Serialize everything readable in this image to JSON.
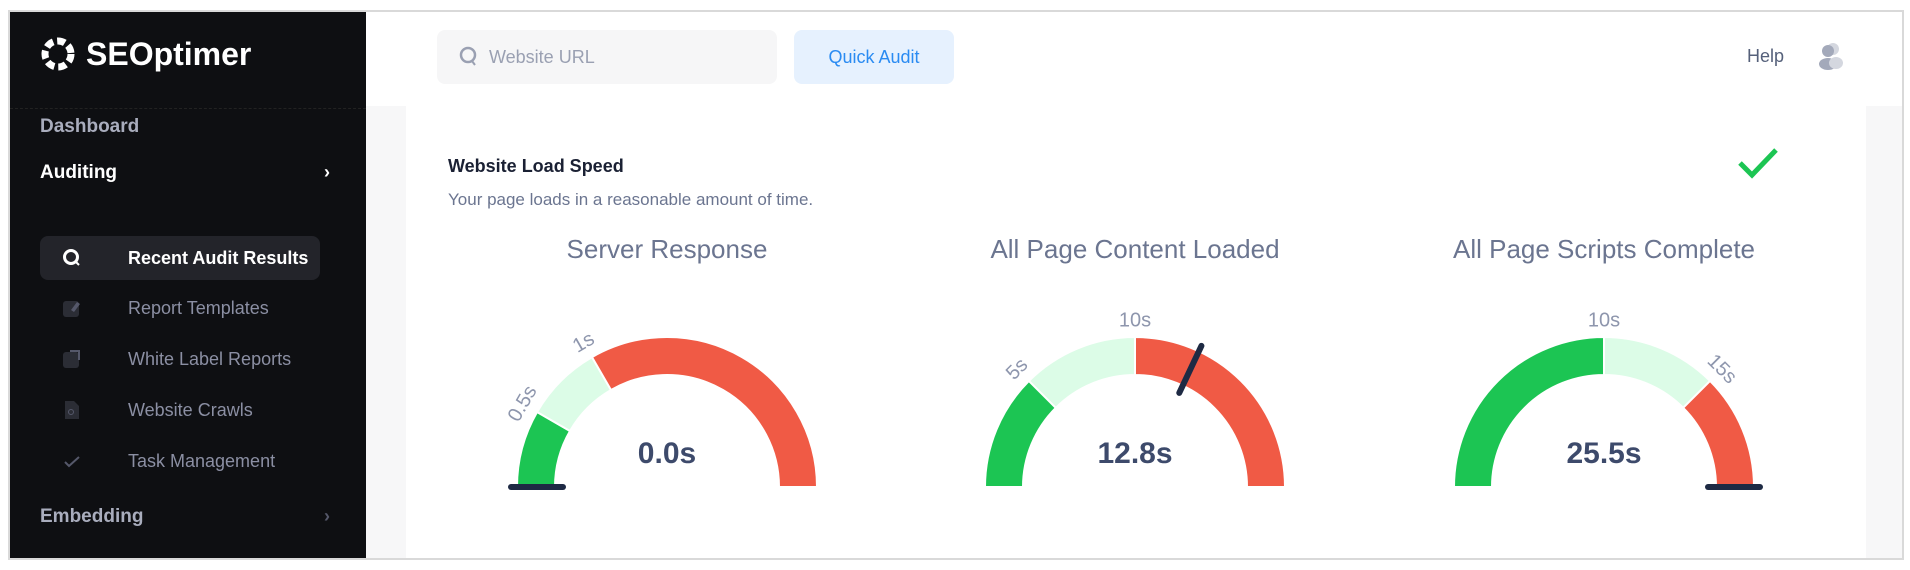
{
  "brand": {
    "name": "SEOptimer"
  },
  "sidebar": {
    "items": [
      {
        "label": "Dashboard",
        "type": "section"
      },
      {
        "label": "Auditing",
        "type": "section",
        "expanded": true
      },
      {
        "label": "Recent Audit Results",
        "icon": "search-icon",
        "active": true
      },
      {
        "label": "Report Templates",
        "icon": "edit-icon"
      },
      {
        "label": "White Label Reports",
        "icon": "report-icon"
      },
      {
        "label": "Website Crawls",
        "icon": "crawl-icon"
      },
      {
        "label": "Task Management",
        "icon": "check-icon"
      },
      {
        "label": "Embedding",
        "type": "section"
      }
    ]
  },
  "topbar": {
    "search_placeholder": "Website URL",
    "quick_audit": "Quick Audit",
    "help": "Help"
  },
  "card": {
    "title": "Website Load Speed",
    "subtitle": "Your page loads in a reasonable amount of time.",
    "status": "pass"
  },
  "colors": {
    "good": "#1cc553",
    "ok": "#dcfce7",
    "bad": "#f05a45",
    "needle": "#1e2a44"
  },
  "gauges": [
    {
      "title": "Server Response",
      "value": "0.0s",
      "value_num": 0,
      "max": 3,
      "thresholds": [
        0.5,
        1
      ],
      "labels": [
        "0.5s",
        "1s"
      ]
    },
    {
      "title": "All Page Content Loaded",
      "value": "12.8s",
      "value_num": 12.8,
      "max": 20,
      "thresholds": [
        5,
        10
      ],
      "labels": [
        "5s",
        "10s"
      ]
    },
    {
      "title": "All Page Scripts Complete",
      "value": "25.5s",
      "value_num": 25.5,
      "max": 20,
      "thresholds": [
        10,
        15
      ],
      "labels": [
        "10s",
        "15s"
      ]
    }
  ]
}
